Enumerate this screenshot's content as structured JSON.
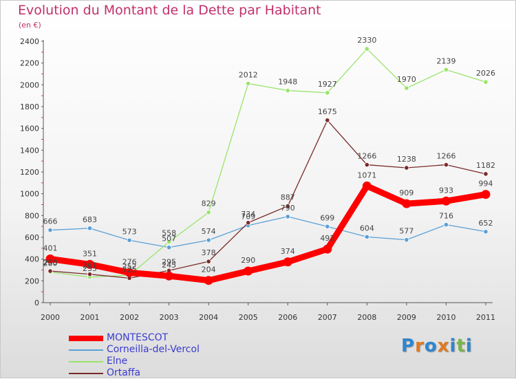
{
  "title": "Evolution du Montant de la Dette par Habitant",
  "subtitle": "(en €)",
  "brand": {
    "letters": [
      "P",
      "r",
      "o",
      "x",
      "i",
      "t",
      "i"
    ],
    "colors": [
      "#2e86d0",
      "#e07a1f",
      "#2e86d0",
      "#e07a1f",
      "#2e86d0",
      "#7ab648",
      "#2e86d0"
    ]
  },
  "chart_data": {
    "type": "line",
    "title": "Evolution du Montant de la Dette par Habitant",
    "ylabel": "(en €)",
    "x": [
      "2000",
      "2001",
      "2002",
      "2003",
      "2004",
      "2005",
      "2006",
      "2007",
      "2008",
      "2009",
      "2010",
      "2011"
    ],
    "ylim": [
      0,
      2400
    ],
    "yticks": [
      "0",
      "200",
      "400",
      "600",
      "800",
      "1000",
      "1200",
      "1400",
      "1600",
      "1800",
      "2000",
      "2200",
      "2400"
    ],
    "grid": false,
    "legend_position": "bottom-left",
    "series": [
      {
        "name": "MONTESCOT",
        "color": "#ff0000",
        "values": [
          401,
          351,
          276,
          245,
          204,
          290,
          374,
          492,
          1071,
          909,
          933,
          994
        ],
        "labels": [
          "401",
          "351",
          "276",
          "245",
          "204",
          "290",
          "374",
          "492",
          "1071",
          "909",
          "933",
          "994"
        ]
      },
      {
        "name": "Corneilla-del-Vercol",
        "color": "#5aa0d6",
        "values": [
          666,
          683,
          573,
          507,
          574,
          709,
          790,
          699,
          604,
          577,
          716,
          652
        ],
        "labels": [
          "666",
          "683",
          "573",
          "507",
          "574",
          "709",
          "790",
          "699",
          "604",
          "577",
          "716",
          "652"
        ]
      },
      {
        "name": "Elne",
        "color": "#99e46a",
        "values": [
          280,
          235,
          252,
          558,
          829,
          2012,
          1948,
          1927,
          2330,
          1970,
          2139,
          2026
        ],
        "labels": [
          "280",
          "235",
          "252",
          "558",
          "829",
          "2012",
          "1948",
          "1927",
          "2330",
          "1970",
          "2139",
          "2026"
        ]
      },
      {
        "name": "Ortaffa",
        "color": "#7a2a2a",
        "values": [
          290,
          261,
          225,
          295,
          378,
          734,
          887,
          1675,
          1266,
          1238,
          1266,
          1182
        ],
        "labels": [
          "290",
          "261",
          "225",
          "295",
          "378",
          "734",
          "887",
          "1675",
          "1266",
          "1238",
          "1266",
          "1182"
        ]
      }
    ]
  }
}
